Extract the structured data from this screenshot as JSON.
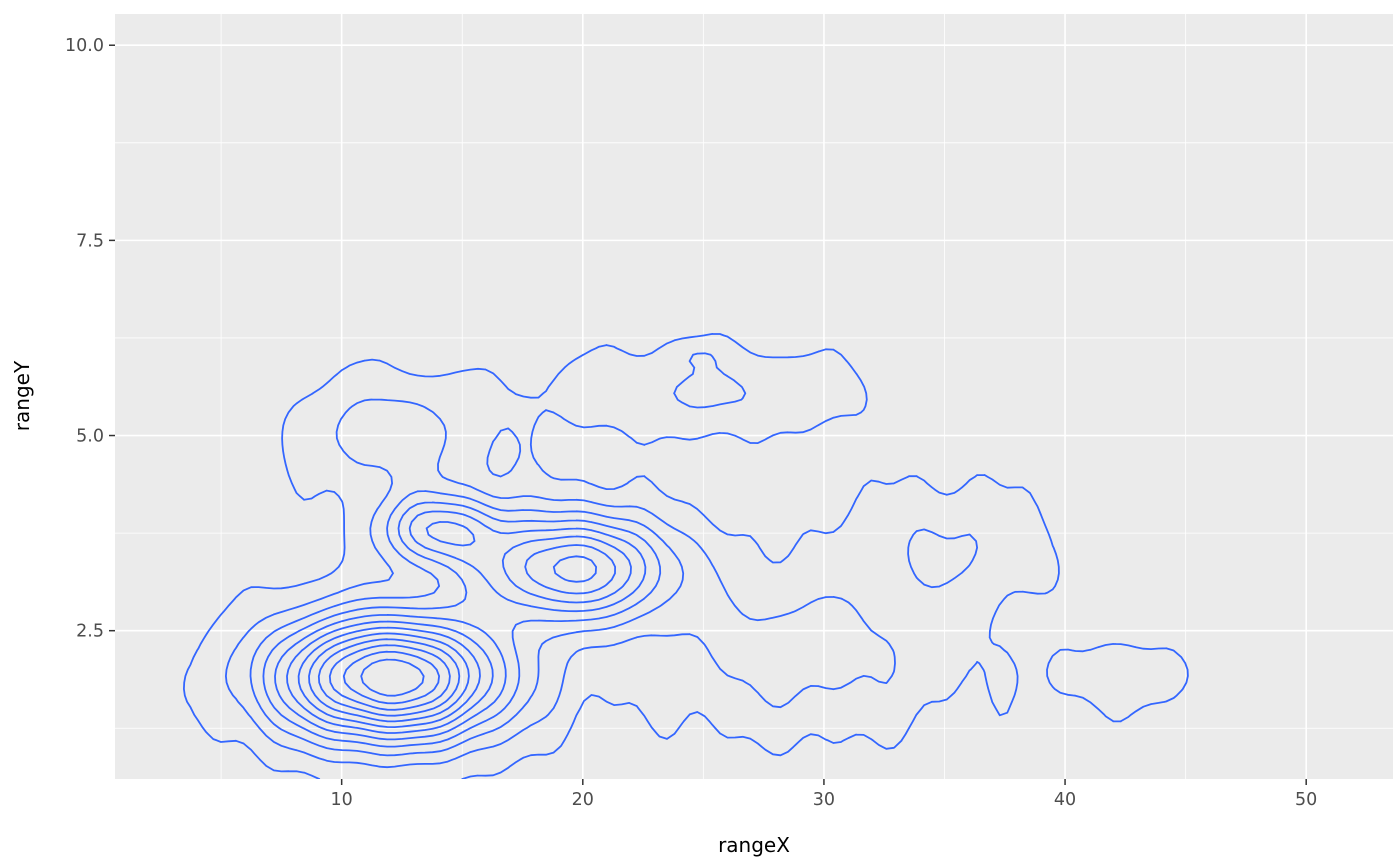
{
  "chart_data": {
    "type": "contour",
    "title": "",
    "xlabel": "rangeX",
    "ylabel": "rangeY",
    "x_tick_values": [
      10,
      20,
      30,
      40,
      50
    ],
    "x_tick_labels": [
      "10",
      "20",
      "30",
      "40",
      "50"
    ],
    "x_minor_ticks": [
      5,
      15,
      25,
      35,
      45
    ],
    "y_tick_values": [
      2.5,
      5.0,
      7.5,
      10.0
    ],
    "y_tick_labels": [
      "2.5",
      "5.0",
      "7.5",
      "10.0"
    ],
    "y_minor_ticks": [
      1.25,
      3.75,
      6.25,
      8.75
    ],
    "xlim": [
      0.6,
      53.6
    ],
    "ylim": [
      0.6,
      10.4
    ],
    "grid": true,
    "legend": "none",
    "panel_bg": "#EBEBEB",
    "grid_color": "#FFFFFF",
    "contour_color": "#3366FF",
    "axis_text_color": "#4D4D4D",
    "tick_mark_color": "#333333",
    "contour_levels": [
      0.04,
      0.12,
      0.2,
      0.28,
      0.36,
      0.44,
      0.52,
      0.6,
      0.68,
      0.76,
      0.84,
      0.92
    ],
    "noise_amplitude": 0.015,
    "density_peaks": [
      {
        "x": 12.0,
        "y": 1.9,
        "sx": 3.3,
        "sy": 0.55,
        "w": 1.0
      },
      {
        "x": 19.5,
        "y": 3.3,
        "sx": 2.9,
        "sy": 0.48,
        "w": 0.62
      },
      {
        "x": 14.0,
        "y": 3.8,
        "sx": 1.7,
        "sy": 0.32,
        "w": 0.4
      },
      {
        "x": 12.0,
        "y": 5.0,
        "sx": 2.6,
        "sy": 0.5,
        "w": 0.18
      },
      {
        "x": 25.0,
        "y": 5.55,
        "sx": 4.5,
        "sy": 0.38,
        "w": 0.13
      },
      {
        "x": 29.0,
        "y": 2.2,
        "sx": 4.5,
        "sy": 0.7,
        "w": 0.16
      },
      {
        "x": 42.5,
        "y": 1.9,
        "sx": 2.2,
        "sy": 0.3,
        "w": 0.1
      },
      {
        "x": 35.0,
        "y": 3.6,
        "sx": 3.0,
        "sy": 0.55,
        "w": 0.12
      },
      {
        "x": 24.7,
        "y": 6.05,
        "sx": 0.9,
        "sy": 0.13,
        "w": 0.06
      }
    ]
  }
}
